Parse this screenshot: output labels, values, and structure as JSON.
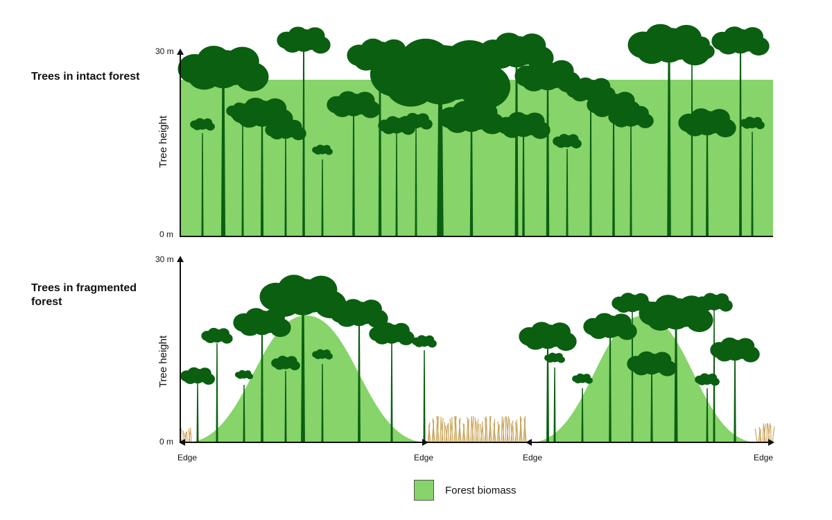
{
  "panels": {
    "intact": {
      "title": "Trees in intact forest",
      "y_top": "30 m",
      "y_bottom": "0 m",
      "ylabel": "Tree height"
    },
    "fragmented": {
      "title": "Trees in fragmented forest",
      "y_top": "30 m",
      "y_bottom": "0 m",
      "ylabel": "Tree height",
      "edges": [
        "Edge",
        "Edge",
        "Edge",
        "Edge"
      ]
    }
  },
  "legend": {
    "label": "Forest biomass"
  },
  "colors": {
    "biomass": "#86d46a",
    "tree": "#0b5f10",
    "grass": "#c9a55a",
    "axis": "#111111"
  }
}
